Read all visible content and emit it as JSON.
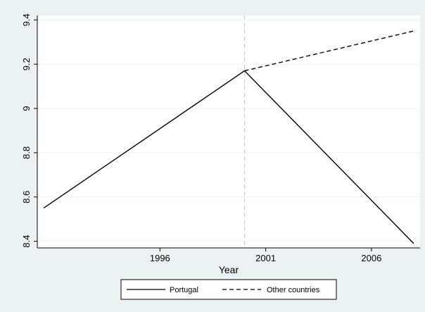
{
  "chart_data": {
    "type": "line",
    "xlabel": "Year",
    "ylabel": "",
    "title": "",
    "xlim": [
      1990.2,
      2008.3
    ],
    "ylim": [
      8.37,
      9.42
    ],
    "xticks": [
      "1996",
      "2001",
      "2006"
    ],
    "yticks": [
      "8.4",
      "8.6",
      "8.8",
      "9",
      "9.2",
      "9.4"
    ],
    "reference_line_x": 2000,
    "series": [
      {
        "name": "Portugal",
        "style": "solid",
        "x": [
          1990.5,
          2000,
          2008
        ],
        "y": [
          8.55,
          9.17,
          8.39
        ]
      },
      {
        "name": "Other countries",
        "style": "dashed",
        "x": [
          2000,
          2008
        ],
        "y": [
          9.17,
          9.35
        ]
      }
    ],
    "legend_position": "bottom",
    "grid": true,
    "colors": {
      "background": "#eaf2f3",
      "plot_bg": "#ffffff",
      "grid": "#eaf2f3",
      "line": "#000000",
      "reference_line": "#c8c8c8"
    }
  }
}
